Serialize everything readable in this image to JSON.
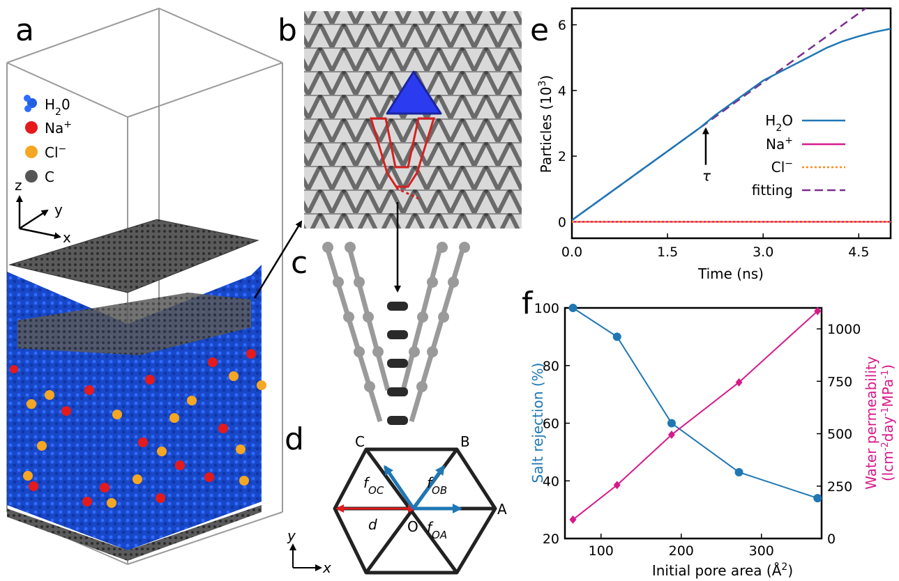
{
  "panels": {
    "a": {
      "letter": "a",
      "legend": [
        {
          "label_main": "H",
          "label_sub": "2",
          "label_tail": "0",
          "color": "#1f5fe0",
          "icon": "water-molecule-icon"
        },
        {
          "label_main": "Na",
          "label_sup": "+",
          "color": "#e41a1c",
          "icon": "sodium-sphere-icon"
        },
        {
          "label_main": "Cl",
          "label_sup": "−",
          "color": "#f5a623",
          "icon": "chloride-sphere-icon"
        },
        {
          "label_main": "C",
          "color": "#555555",
          "icon": "carbon-sphere-icon"
        }
      ],
      "axes": {
        "z": "z",
        "y": "y",
        "x": "x"
      }
    },
    "b": {
      "letter": "b"
    },
    "c": {
      "letter": "c"
    },
    "d": {
      "letter": "d",
      "vertices": {
        "A": "A",
        "B": "B",
        "C": "C",
        "O": "O"
      },
      "forces": {
        "oc": "f",
        "oc_sub": "OC",
        "ob": "f",
        "ob_sub": "OB",
        "oa": "f",
        "oa_sub": "OA"
      },
      "distance": "d",
      "axes": {
        "y": "y",
        "x": "x"
      }
    },
    "e": {
      "letter": "e"
    },
    "f": {
      "letter": "f"
    }
  },
  "chart_data": [
    {
      "id": "e",
      "type": "line",
      "xlabel": "Time (ns)",
      "ylabel_main": "Particles (10",
      "ylabel_sup": "3",
      "ylabel_tail": ")",
      "xlim": [
        0,
        5.0
      ],
      "ylim": [
        -0.5,
        6.5
      ],
      "xticks": [
        0,
        1.5,
        3.0,
        4.5
      ],
      "xtick_labels": [
        "0.0",
        "1.5",
        "3.0",
        "4.5"
      ],
      "yticks": [
        0,
        2,
        4,
        6
      ],
      "ytick_labels": [
        "0",
        "2",
        "4",
        "6"
      ],
      "legend_placement": "right",
      "series": [
        {
          "name_main": "H",
          "name_sub": "2",
          "name_tail": "O",
          "style": "solid",
          "color": "#1f77b4",
          "x": [
            0,
            0.25,
            0.5,
            0.75,
            1.0,
            1.25,
            1.5,
            1.75,
            2.0,
            2.25,
            2.5,
            2.75,
            3.0,
            3.25,
            3.5,
            3.75,
            4.0,
            4.25,
            4.5,
            4.75,
            5.0
          ],
          "y": [
            0.05,
            0.4,
            0.75,
            1.1,
            1.45,
            1.8,
            2.15,
            2.5,
            2.85,
            3.25,
            3.6,
            3.95,
            4.3,
            4.55,
            4.8,
            5.05,
            5.3,
            5.5,
            5.65,
            5.78,
            5.88
          ]
        },
        {
          "name_main": "Na",
          "name_sup": "+",
          "style": "solid",
          "color": "#d6198a",
          "x": [
            0,
            5.0
          ],
          "y": [
            0,
            0
          ]
        },
        {
          "name_main": "Cl",
          "name_sup": "−",
          "style": "dotted",
          "color": "#ff8c1a",
          "x": [
            0,
            5.0
          ],
          "y": [
            0,
            0
          ]
        },
        {
          "name_main": "fitting",
          "style": "dashed",
          "color": "#7b2d8e",
          "x": [
            0,
            5.0
          ],
          "y": [
            0.05,
            7.05
          ]
        }
      ],
      "annotation": {
        "text": "τ",
        "x": 2.1,
        "y": 3.05
      }
    },
    {
      "id": "f",
      "type": "line",
      "xlabel_main": "Initial pore area (Å",
      "xlabel_sup": "2",
      "xlabel_tail": ")",
      "ylabel": "Salt rejection (%)",
      "y2label_line1": "Water permeability",
      "y2label_line2_main": "(lcm",
      "y2label_line2_sup1": "-2",
      "y2label_line2_mid": "day",
      "y2label_line2_sup2": "-1",
      "y2label_line2_mid2": "MPa",
      "y2label_line2_sup3": "-1",
      "y2label_line2_tail": ")",
      "xlim": [
        55,
        375
      ],
      "ylim": [
        20,
        100
      ],
      "y2lim": [
        0,
        1100
      ],
      "xticks": [
        100,
        200,
        300
      ],
      "xtick_labels": [
        "100",
        "200",
        "300"
      ],
      "yticks": [
        20,
        40,
        60,
        80,
        100
      ],
      "ytick_labels": [
        "20",
        "40",
        "60",
        "80",
        "100"
      ],
      "y2ticks": [
        0,
        250,
        500,
        750,
        1000
      ],
      "y2tick_labels": [
        "0",
        "250",
        "500",
        "750",
        "1000"
      ],
      "series": [
        {
          "name": "Salt rejection",
          "axis": "left",
          "marker": "circle",
          "color": "#1f77b4",
          "x": [
            65,
            120,
            188,
            272,
            370
          ],
          "y": [
            100,
            90,
            60,
            43,
            34
          ]
        },
        {
          "name": "Water permeability",
          "axis": "right",
          "marker": "diamond",
          "color": "#d6198a",
          "x": [
            65,
            120,
            188,
            272,
            370
          ],
          "y": [
            90,
            255,
            495,
            745,
            1085
          ]
        }
      ]
    }
  ]
}
